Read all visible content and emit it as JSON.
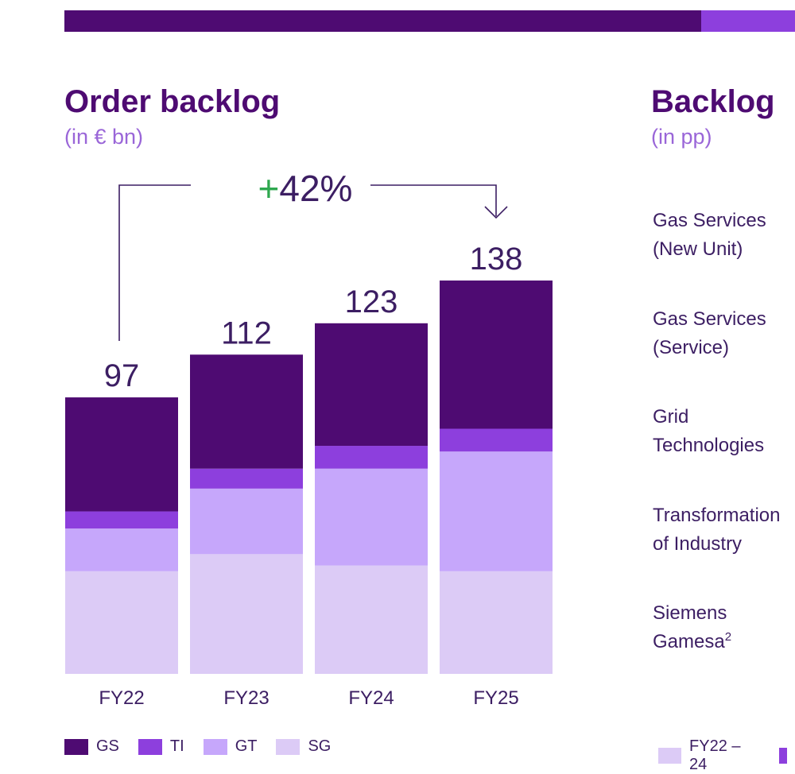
{
  "header_bar": {
    "color": "#4e0b72",
    "accent_color": "#8d3fdd"
  },
  "left_panel": {
    "title": "Order backlog",
    "unit": "(in € bn)"
  },
  "right_panel": {
    "title": "Backlog",
    "unit": "(in pp)",
    "segments": [
      {
        "line1": "Gas Services",
        "line2": "(New Unit)"
      },
      {
        "line1": "Gas Services",
        "line2": "(Service)"
      },
      {
        "line1": "Grid",
        "line2": "Technologies"
      },
      {
        "line1": "Transformation",
        "line2": "of Industry"
      },
      {
        "line1": "Siemens",
        "line2": "Gamesa",
        "sup": "2"
      }
    ],
    "legend": [
      {
        "label": "FY22 – 24",
        "color": "#dccbf6"
      }
    ]
  },
  "chart_data": {
    "type": "bar",
    "stacked": true,
    "title": "Order backlog",
    "ylabel": "in € bn",
    "categories": [
      "FY22",
      "FY23",
      "FY24",
      "FY25"
    ],
    "totals": [
      97,
      112,
      123,
      138
    ],
    "series": [
      {
        "name": "SG",
        "color": "#dccbf6",
        "values": [
          36,
          42,
          38,
          36
        ]
      },
      {
        "name": "GT",
        "color": "#c6a7fb",
        "values": [
          15,
          23,
          34,
          42
        ]
      },
      {
        "name": "TI",
        "color": "#8d3fdd",
        "values": [
          6,
          7,
          8,
          8
        ]
      },
      {
        "name": "GS",
        "color": "#4e0b72",
        "values": [
          40,
          40,
          43,
          52
        ]
      }
    ],
    "growth_annotation": {
      "sign": "+",
      "text": "42%",
      "from": "FY22",
      "to": "FY25"
    },
    "legend_order": [
      "GS",
      "TI",
      "GT",
      "SG"
    ],
    "ylim": [
      0,
      138
    ]
  }
}
